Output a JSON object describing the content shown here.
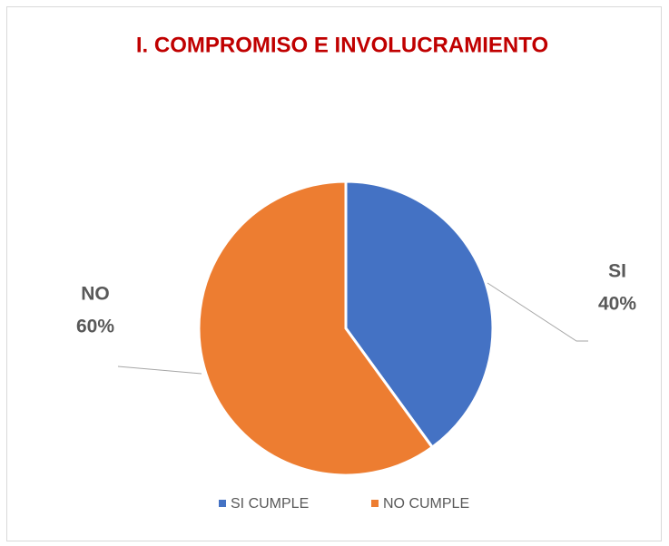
{
  "chart_data": {
    "type": "pie",
    "title": "I. COMPROMISO E INVOLUCRAMIENTO",
    "categories": [
      "SI CUMPLE",
      "NO CUMPLE"
    ],
    "data_label_names": [
      "SI",
      "NO"
    ],
    "values": [
      40,
      60
    ],
    "value_labels": [
      "40%",
      "60%"
    ],
    "colors": [
      "#4472c4",
      "#ed7d31"
    ],
    "legend": "bottom"
  }
}
